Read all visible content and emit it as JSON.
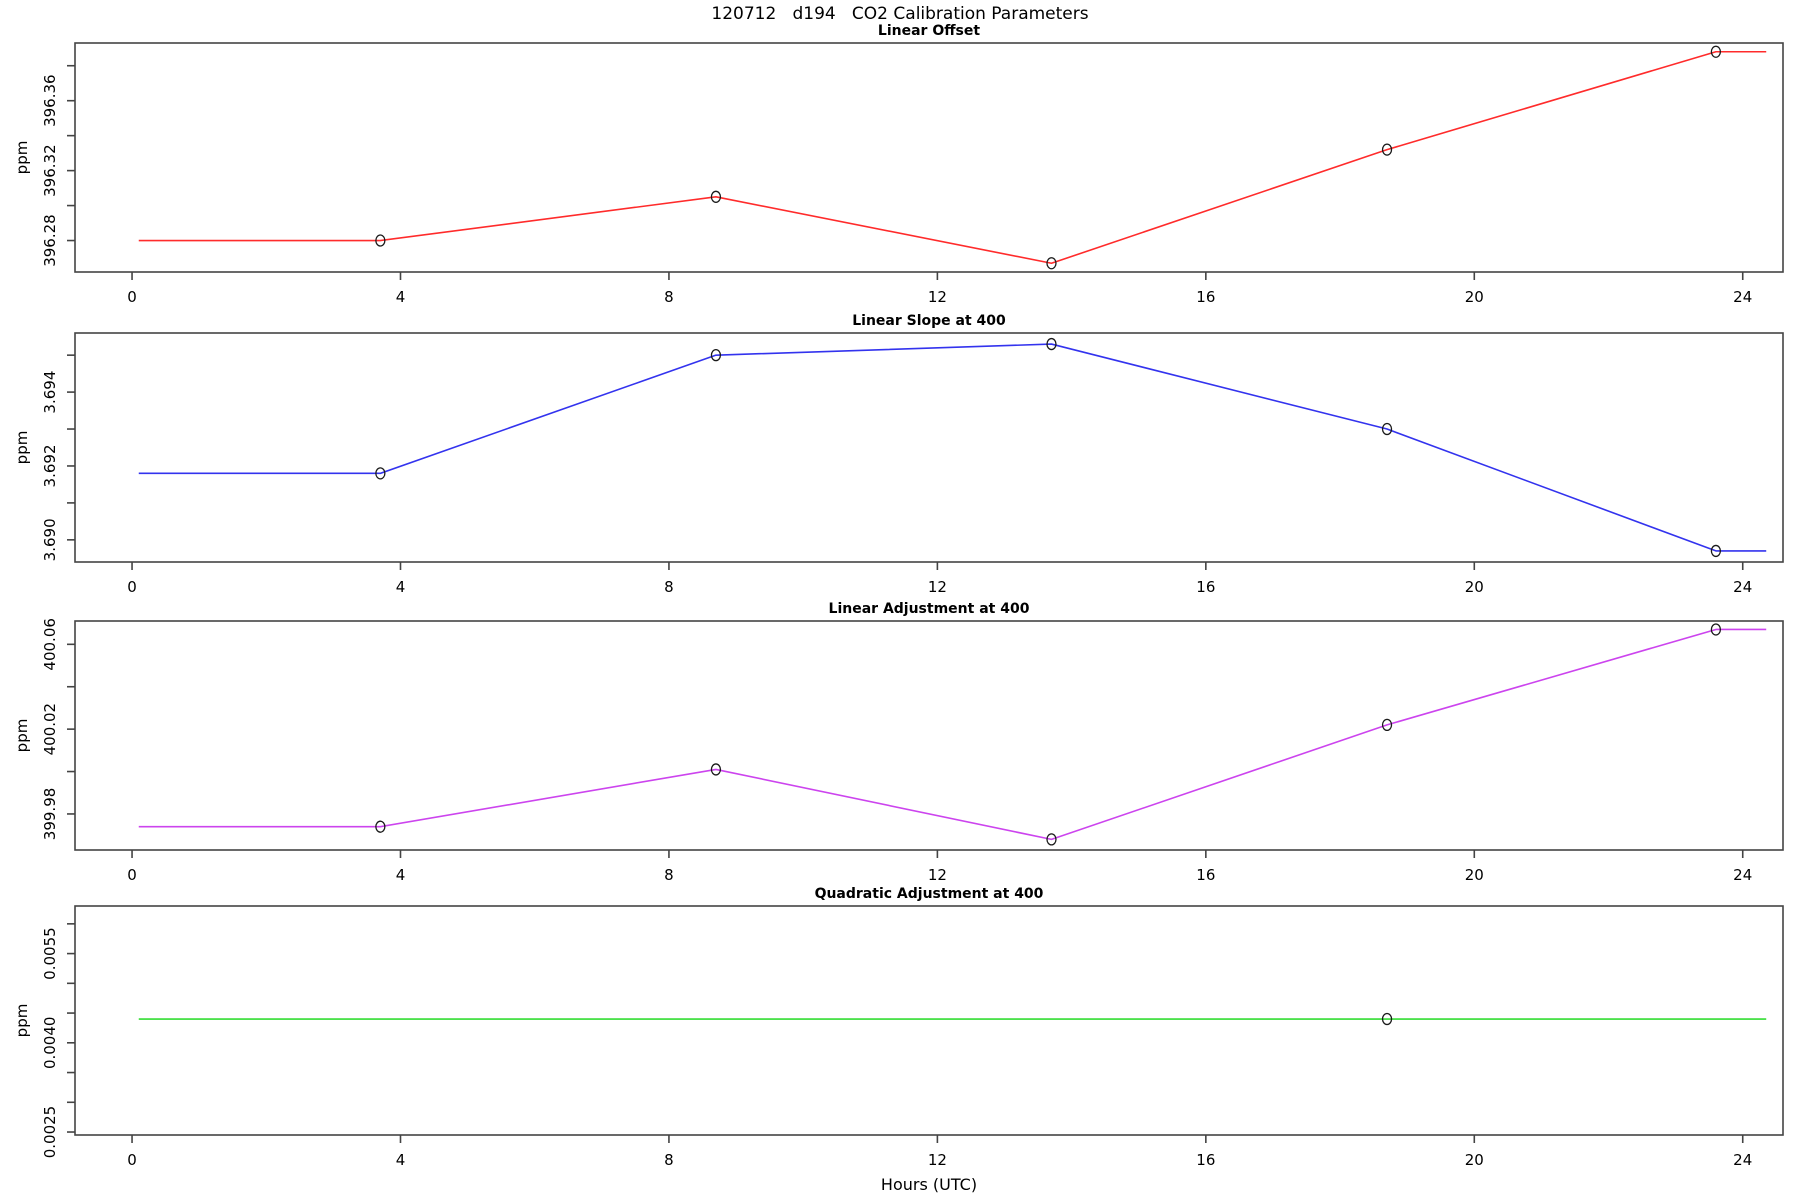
{
  "main_title": "120712   d194   CO2 Calibration Parameters",
  "x_axis": {
    "label": "Hours (UTC)",
    "ticks": [
      0,
      4,
      8,
      12,
      16,
      20,
      24
    ],
    "xlim": [
      -0.85,
      24.6
    ]
  },
  "chart_data": [
    {
      "type": "line",
      "title": "Linear Offset",
      "ylabel": "ppm",
      "color": "#ff2b2b",
      "ylim": [
        396.262,
        396.393
      ],
      "yticks": [
        {
          "v": 396.28,
          "label": "396.28"
        },
        {
          "v": 396.3,
          "label": ""
        },
        {
          "v": 396.32,
          "label": "396.32"
        },
        {
          "v": 396.34,
          "label": ""
        },
        {
          "v": 396.36,
          "label": "396.36"
        },
        {
          "v": 396.38,
          "label": ""
        }
      ],
      "line": {
        "x": [
          0.1,
          3.7,
          8.7,
          13.7,
          18.7,
          23.6,
          24.35
        ],
        "y": [
          396.28,
          396.28,
          396.305,
          396.267,
          396.332,
          396.388,
          396.388
        ]
      },
      "markers": {
        "x": [
          3.7,
          8.7,
          13.7,
          18.7,
          23.6
        ],
        "y": [
          396.28,
          396.305,
          396.267,
          396.332,
          396.388
        ]
      }
    },
    {
      "type": "line",
      "title": "Linear Slope at 400",
      "ylabel": "ppm",
      "color": "#3333ee",
      "ylim": [
        3.6894,
        3.6956
      ],
      "yticks": [
        {
          "v": 3.69,
          "label": "3.690"
        },
        {
          "v": 3.691,
          "label": ""
        },
        {
          "v": 3.692,
          "label": "3.692"
        },
        {
          "v": 3.693,
          "label": ""
        },
        {
          "v": 3.694,
          "label": "3.694"
        },
        {
          "v": 3.695,
          "label": ""
        }
      ],
      "line": {
        "x": [
          0.1,
          3.7,
          8.7,
          13.7,
          18.7,
          23.6,
          24.35
        ],
        "y": [
          3.6918,
          3.6918,
          3.695,
          3.6953,
          3.693,
          3.6897,
          3.6897
        ]
      },
      "markers": {
        "x": [
          3.7,
          8.7,
          13.7,
          18.7,
          23.6
        ],
        "y": [
          3.6918,
          3.695,
          3.6953,
          3.693,
          3.6897
        ]
      }
    },
    {
      "type": "line",
      "title": "Linear Adjustment at 400",
      "ylabel": "ppm",
      "color": "#cc44ee",
      "ylim": [
        399.963,
        400.071
      ],
      "yticks": [
        {
          "v": 399.98,
          "label": "399.98"
        },
        {
          "v": 400.0,
          "label": ""
        },
        {
          "v": 400.02,
          "label": "400.02"
        },
        {
          "v": 400.04,
          "label": ""
        },
        {
          "v": 400.06,
          "label": "400.06"
        }
      ],
      "line": {
        "x": [
          0.1,
          3.7,
          8.7,
          13.7,
          18.7,
          23.6,
          24.35
        ],
        "y": [
          399.974,
          399.974,
          400.001,
          399.968,
          400.022,
          400.067,
          400.067
        ]
      },
      "markers": {
        "x": [
          3.7,
          8.7,
          13.7,
          18.7,
          23.6
        ],
        "y": [
          399.974,
          400.001,
          399.968,
          400.022,
          400.067
        ]
      }
    },
    {
      "type": "line",
      "title": "Quadratic Adjustment at 400",
      "ylabel": "ppm",
      "color": "#33dd33",
      "ylim": [
        0.00245,
        0.0063
      ],
      "yticks": [
        {
          "v": 0.0025,
          "label": "0.0025"
        },
        {
          "v": 0.003,
          "label": ""
        },
        {
          "v": 0.0035,
          "label": ""
        },
        {
          "v": 0.004,
          "label": "0.0040"
        },
        {
          "v": 0.0045,
          "label": ""
        },
        {
          "v": 0.005,
          "label": ""
        },
        {
          "v": 0.0055,
          "label": "0.0055"
        },
        {
          "v": 0.006,
          "label": ""
        }
      ],
      "line": {
        "x": [
          0.1,
          24.35
        ],
        "y": [
          0.0044,
          0.0044
        ]
      },
      "markers": {
        "x": [
          18.7
        ],
        "y": [
          0.0044
        ]
      }
    }
  ]
}
